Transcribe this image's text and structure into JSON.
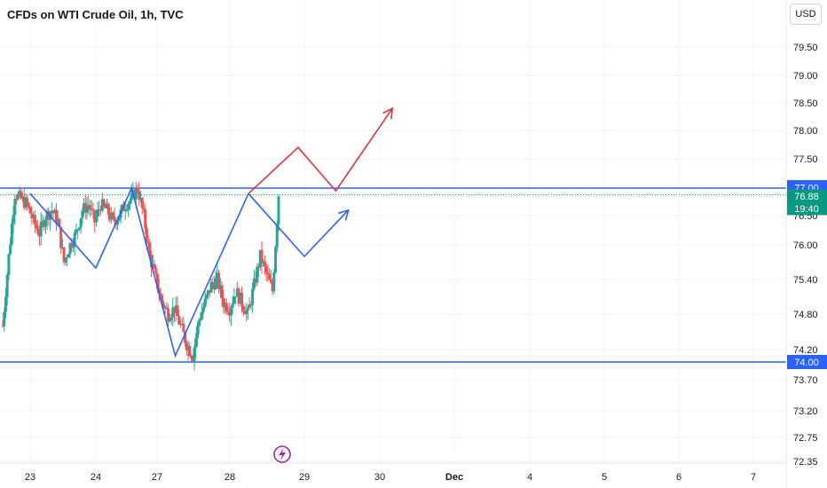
{
  "header": {
    "title": "CFDs on WTI Crude Oil, 1h, TVC",
    "currency": "USD"
  },
  "badges": {
    "resistance": "77.00",
    "last_price": "76.88",
    "countdown": "19:40",
    "support": "74.00"
  },
  "colors": {
    "up": "#26a69a",
    "down": "#ef5350",
    "blue": "#2962ff",
    "red": "#e03140",
    "badge_green": "#089981"
  },
  "chart_data": {
    "type": "candlestick",
    "title": "CFDs on WTI Crude Oil, 1h, TVC",
    "y_ticks": [
      79.5,
      79.0,
      78.5,
      78.0,
      77.5,
      76.5,
      76.0,
      75.4,
      74.8,
      74.2,
      73.7,
      73.2,
      72.75,
      72.35
    ],
    "x_ticks": [
      "23",
      "24",
      "27",
      "28",
      "29",
      "30",
      "Dec",
      "4",
      "5",
      "6",
      "7"
    ],
    "ylim": [
      72.3,
      80.0
    ],
    "horizontal_levels": [
      {
        "name": "resistance",
        "value": 77.0
      },
      {
        "name": "support",
        "value": 74.0
      }
    ],
    "last_price": 76.88,
    "candles_close_path": [
      74.6,
      75.8,
      76.9,
      76.8,
      76.7,
      76.4,
      76.2,
      76.5,
      76.6,
      76.4,
      75.7,
      76.0,
      76.2,
      76.6,
      76.7,
      76.4,
      76.7,
      76.6,
      76.4,
      76.5,
      76.7,
      76.8,
      77.0,
      76.5,
      75.8,
      75.4,
      75.0,
      74.8,
      74.9,
      74.6,
      74.3,
      74.1,
      74.7,
      75.0,
      75.3,
      75.4,
      75.0,
      74.9,
      75.2,
      75.0,
      74.8,
      75.3,
      75.8,
      75.5,
      75.2,
      76.85
    ],
    "pattern_lines": [
      {
        "color": "blue",
        "points": [
          [
            "Nov 23 00:00",
            76.9
          ],
          [
            "Nov 24 00:00",
            75.6
          ],
          [
            "Nov 24 14:00",
            77.0
          ],
          [
            "Nov 27 06:00",
            74.1
          ],
          [
            "Nov 28 06:00",
            76.9
          ]
        ]
      },
      {
        "color": "blue",
        "arrow": true,
        "points": [
          [
            "Nov 28 06:00",
            76.9
          ],
          [
            "Nov 29 00:00",
            75.8
          ],
          [
            "Nov 29 14:00",
            76.6
          ]
        ]
      },
      {
        "color": "red",
        "arrow": true,
        "points": [
          [
            "Nov 28 06:00",
            76.9
          ],
          [
            "Nov 28 22:00",
            77.7
          ],
          [
            "Nov 29 10:00",
            76.95
          ],
          [
            "Nov 30 04:00",
            78.4
          ]
        ]
      }
    ]
  }
}
